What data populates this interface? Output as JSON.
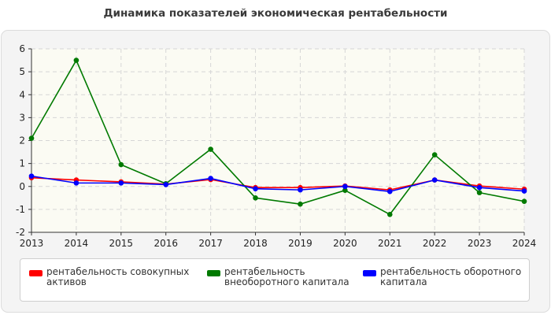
{
  "chart_data": {
    "type": "line",
    "title": "Динамика показателей экономическая рентабельности",
    "xlabel": "",
    "ylabel": "",
    "x": [
      "2013",
      "2014",
      "2015",
      "2016",
      "2017",
      "2018",
      "2019",
      "2020",
      "2021",
      "2022",
      "2023",
      "2024"
    ],
    "ylim": [
      -2,
      6
    ],
    "yticks": [
      -2,
      -1,
      0,
      1,
      2,
      3,
      4,
      5,
      6
    ],
    "grid": true,
    "legend_position": "bottom",
    "series": [
      {
        "name": "рентабельность совокупных активов",
        "color": "#ff0000",
        "values": [
          0.38,
          0.28,
          0.2,
          0.1,
          0.3,
          -0.05,
          -0.05,
          0.02,
          -0.15,
          0.28,
          0.02,
          -0.12
        ]
      },
      {
        "name": "рентабельность внеоборотного капитала",
        "color": "#007a00",
        "values": [
          2.1,
          5.5,
          0.95,
          0.12,
          1.62,
          -0.5,
          -0.77,
          -0.17,
          -1.22,
          1.38,
          -0.27,
          -0.65
        ]
      },
      {
        "name": "рентабельность оборотного капитала",
        "color": "#0000ff",
        "values": [
          0.45,
          0.15,
          0.15,
          0.08,
          0.35,
          -0.1,
          -0.15,
          0.0,
          -0.22,
          0.28,
          -0.05,
          -0.2
        ]
      }
    ]
  }
}
